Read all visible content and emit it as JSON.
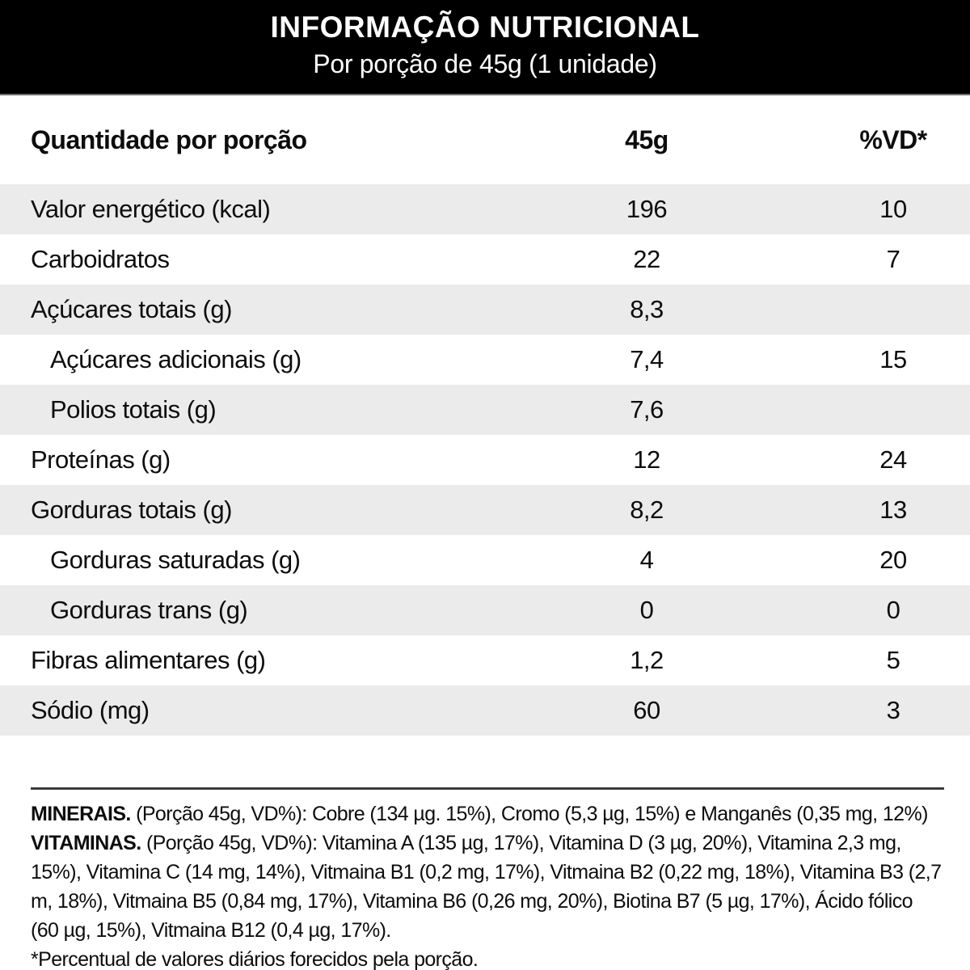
{
  "header": {
    "title": "INFORMAÇÃO NUTRICIONAL",
    "subtitle": "Por porção de 45g (1 unidade)"
  },
  "table": {
    "columns": {
      "label": "Quantidade por porção",
      "amount": "45g",
      "dv": "%VD*"
    },
    "rows": [
      {
        "label": "Valor energético (kcal)",
        "value": "196",
        "vd": "10",
        "indent": false
      },
      {
        "label": "Carboidratos",
        "value": "22",
        "vd": "7",
        "indent": false
      },
      {
        "label": "Açúcares totais (g)",
        "value": "8,3",
        "vd": "",
        "indent": false
      },
      {
        "label": "Açúcares adicionais (g)",
        "value": "7,4",
        "vd": "15",
        "indent": true
      },
      {
        "label": "Polios totais (g)",
        "value": "7,6",
        "vd": "",
        "indent": true
      },
      {
        "label": "Proteínas (g)",
        "value": "12",
        "vd": "24",
        "indent": false
      },
      {
        "label": "Gorduras totais (g)",
        "value": "8,2",
        "vd": "13",
        "indent": false
      },
      {
        "label": "Gorduras saturadas (g)",
        "value": "4",
        "vd": "20",
        "indent": true
      },
      {
        "label": "Gorduras trans (g)",
        "value": "0",
        "vd": "0",
        "indent": true
      },
      {
        "label": "Fibras alimentares (g)",
        "value": "1,2",
        "vd": "5",
        "indent": false
      },
      {
        "label": "Sódio (mg)",
        "value": "60",
        "vd": "3",
        "indent": false
      }
    ]
  },
  "footnotes": {
    "minerals_label": "MINERAIS.",
    "minerals_text": " (Porção 45g, VD%): Cobre (134 µg. 15%), Cromo (5,3 µg, 15%) e Manganês (0,35 mg, 12%)",
    "vitamins_label": "VITAMINAS.",
    "vitamins_text": " (Porção 45g, VD%): Vitamina A (135 µg, 17%), Vitamina D (3 µg, 20%), Vitamina 2,3 mg, 15%), Vitamina C (14 mg, 14%), Vitmaina B1 (0,2 mg, 17%), Vitmaina B2 (0,22 mg, 18%), Vitamina B3 (2,7 m, 18%), Vitmaina B5 (0,84 mg, 17%), Vitamina B6 (0,26 mg, 20%), Biotina B7 (5 µg, 17%), Ácido fólico (60 µg, 15%), Vitmaina B12 (0,4 µg, 17%).",
    "daily_value_note": "*Percentual de valores diários forecidos pela porção."
  },
  "colors": {
    "banner_bg": "#000000",
    "banner_text": "#ffffff",
    "row_shaded": "#ebebeb",
    "text": "#0d0d0d",
    "rule": "#3c3c3c"
  }
}
